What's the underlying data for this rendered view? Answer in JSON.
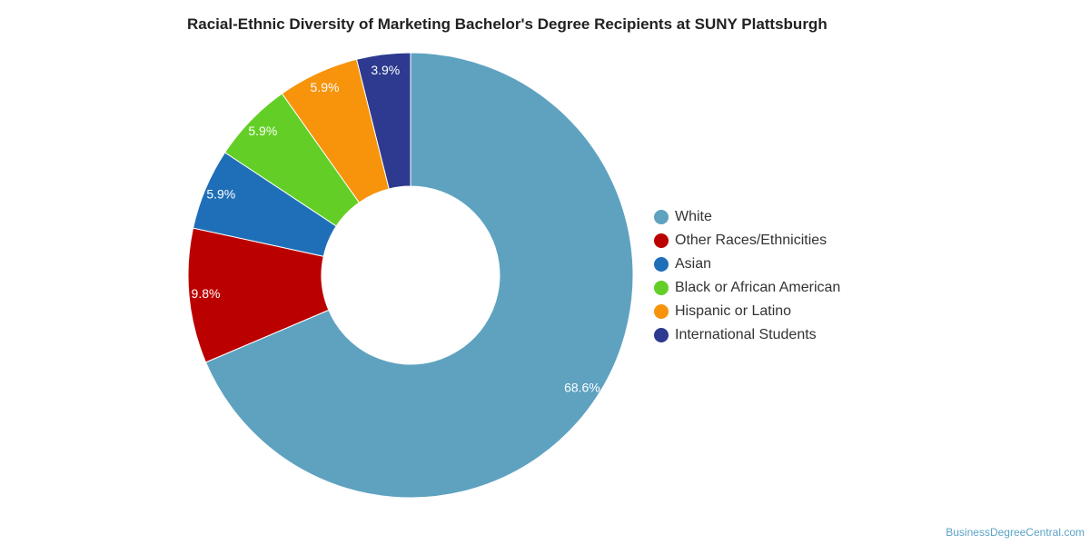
{
  "title": "Racial-Ethnic Diversity of Marketing Bachelor's Degree Recipients at SUNY Plattsburgh",
  "credit": "BusinessDegreeCentral.com",
  "chart_data": {
    "type": "pie",
    "donut": true,
    "legend_position": "right",
    "slices": [
      {
        "name": "White",
        "value": 68.6,
        "label": "68.6%",
        "color": "#5ea2c0"
      },
      {
        "name": "Other Races/Ethnicities",
        "value": 9.8,
        "label": "9.8%",
        "color": "#bb0000"
      },
      {
        "name": "Asian",
        "value": 5.9,
        "label": "5.9%",
        "color": "#1f6fb8"
      },
      {
        "name": "Black or African American",
        "value": 5.9,
        "label": "5.9%",
        "color": "#63cf26"
      },
      {
        "name": "Hispanic or Latino",
        "value": 5.9,
        "label": "5.9%",
        "color": "#f7940c"
      },
      {
        "name": "International Students",
        "value": 3.9,
        "label": "3.9%",
        "color": "#2d3a8f"
      }
    ]
  }
}
